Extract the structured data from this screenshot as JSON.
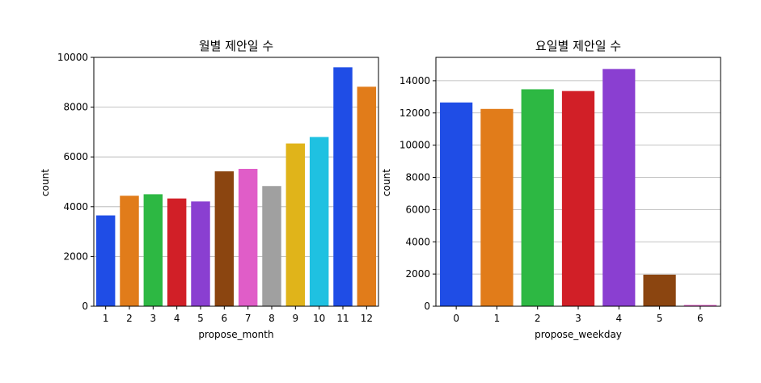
{
  "chart_data": [
    {
      "type": "bar",
      "title": "월별 제안일 수",
      "xlabel": "propose_month",
      "ylabel": "count",
      "categories": [
        "1",
        "2",
        "3",
        "4",
        "5",
        "6",
        "7",
        "8",
        "9",
        "10",
        "11",
        "12"
      ],
      "values": [
        3650,
        4440,
        4500,
        4330,
        4210,
        5420,
        5520,
        4830,
        6540,
        6800,
        9600,
        8820
      ],
      "colors": [
        "#1f4de6",
        "#e17c1a",
        "#2db843",
        "#d11f27",
        "#8a3fd1",
        "#8b4510",
        "#e05dc8",
        "#a0a0a0",
        "#e0b41a",
        "#1fc1e1",
        "#1f4de6",
        "#e17c1a"
      ],
      "ylim": [
        0,
        10000
      ],
      "yticks": [
        0,
        2000,
        4000,
        6000,
        8000,
        10000
      ],
      "grid": "y"
    },
    {
      "type": "bar",
      "title": "요일별 제안일 수",
      "xlabel": "propose_weekday",
      "ylabel": "count",
      "categories": [
        "0",
        "1",
        "2",
        "3",
        "4",
        "5",
        "6"
      ],
      "values": [
        12650,
        12250,
        13470,
        13360,
        14730,
        1960,
        80
      ],
      "colors": [
        "#1f4de6",
        "#e17c1a",
        "#2db843",
        "#d11f27",
        "#8a3fd1",
        "#8b4510",
        "#e05dc8"
      ],
      "ylim": [
        0,
        15450
      ],
      "yticks": [
        0,
        2000,
        4000,
        6000,
        8000,
        10000,
        12000,
        14000
      ],
      "grid": "y"
    }
  ]
}
